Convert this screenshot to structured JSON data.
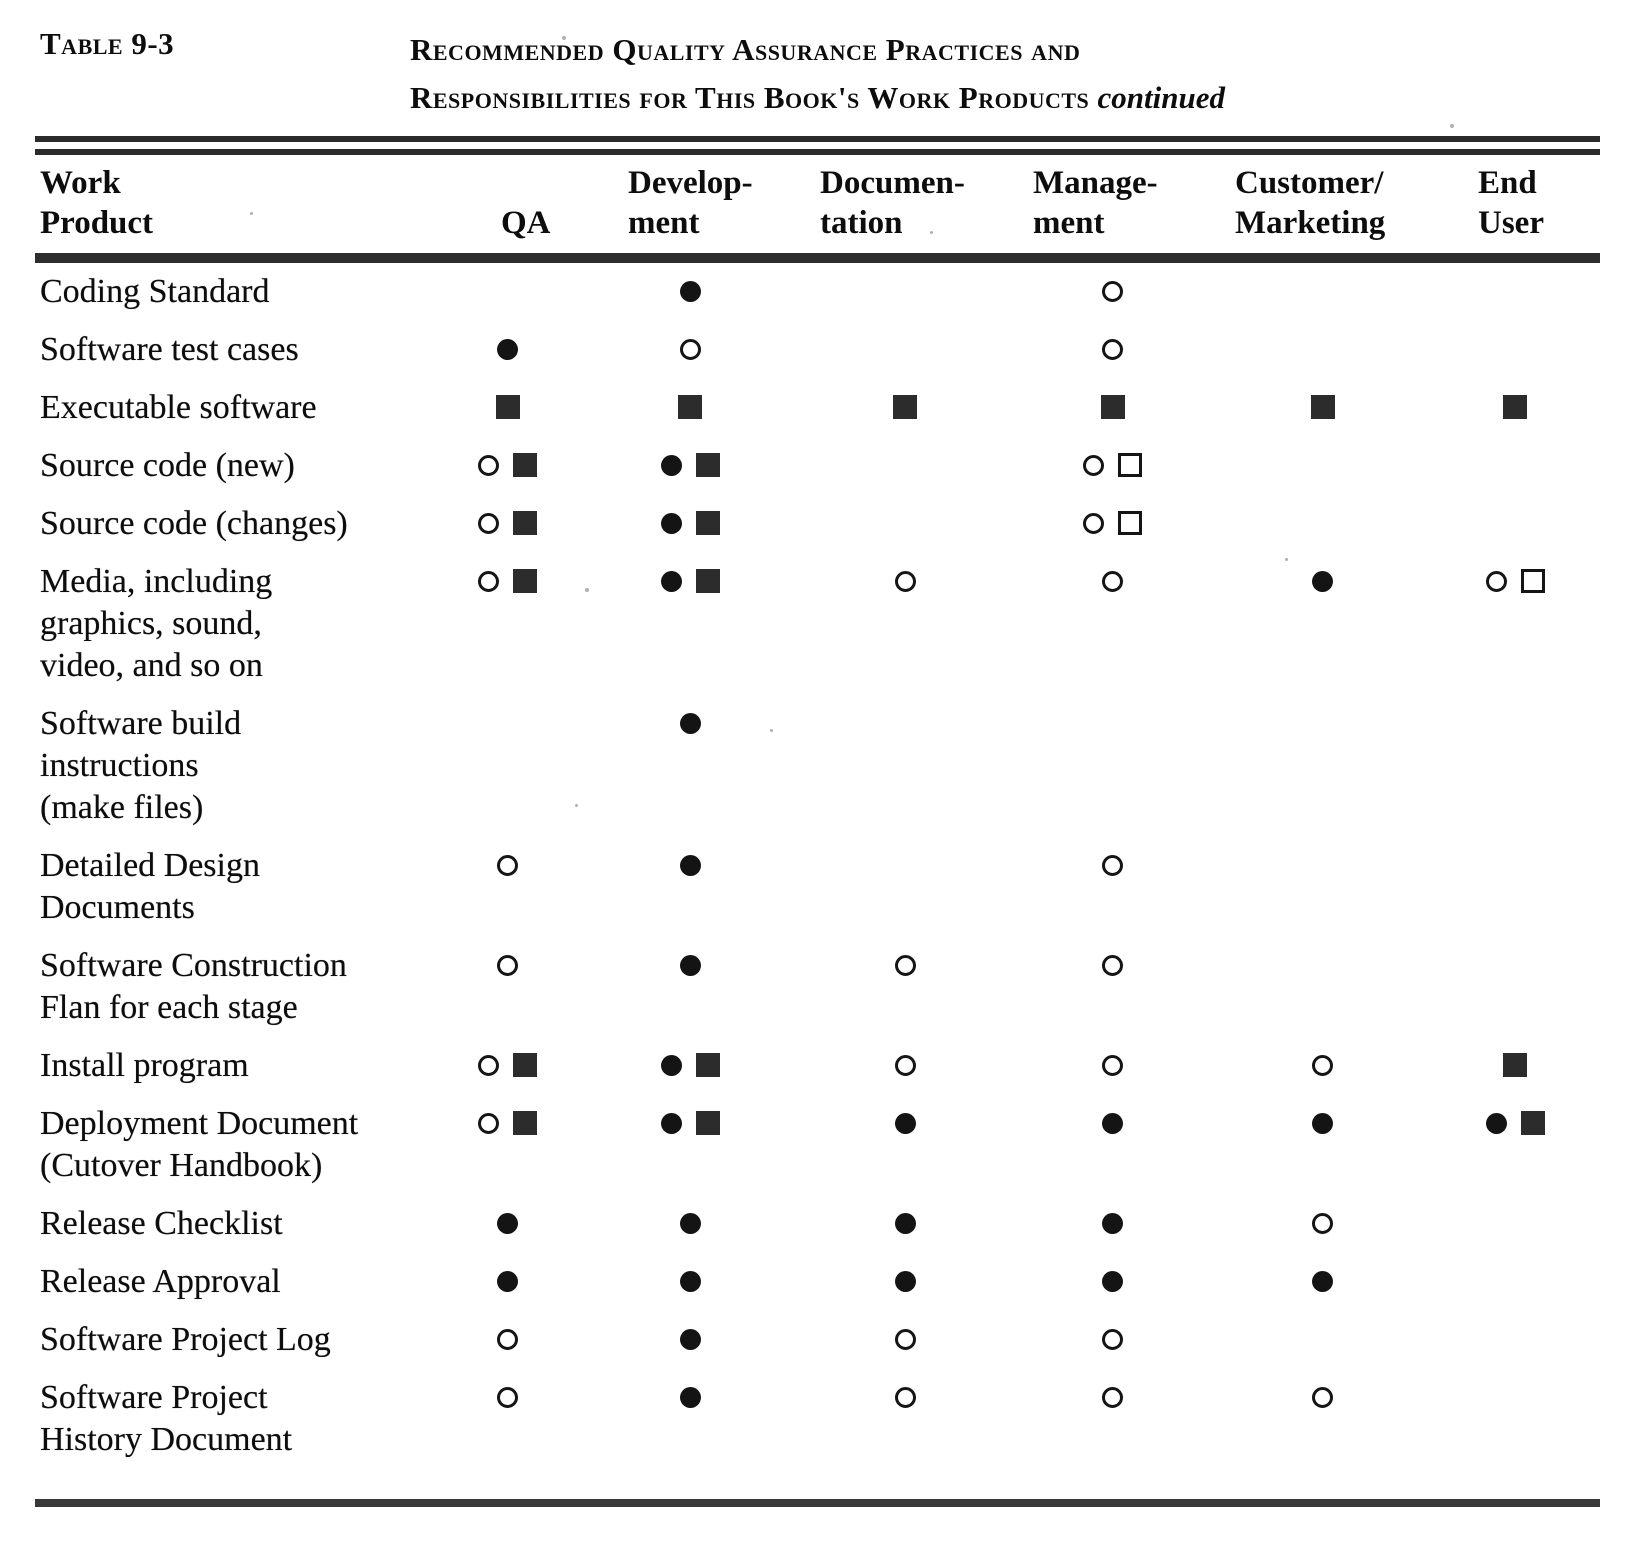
{
  "caption": {
    "label": "Table 9-3",
    "title_line1": "Recommended Quality Assurance Practices and",
    "title_line2": "Responsibilities for This Book's Work Products",
    "continued": "continued"
  },
  "table": {
    "columns": [
      {
        "id": "product",
        "lines": [
          "Work",
          "Product"
        ]
      },
      {
        "id": "qa",
        "lines": [
          "",
          "QA"
        ]
      },
      {
        "id": "development",
        "lines": [
          "Develop-",
          "ment"
        ]
      },
      {
        "id": "documentation",
        "lines": [
          "Documen-",
          "tation"
        ]
      },
      {
        "id": "management",
        "lines": [
          "Manage-",
          "ment"
        ]
      },
      {
        "id": "customer_marketing",
        "lines": [
          "Customer/",
          "Marketing"
        ]
      },
      {
        "id": "end_user",
        "lines": [
          "End",
          "User"
        ]
      }
    ],
    "symbols": {
      "filled-circle": "●",
      "open-circle": "○",
      "filled-square": "■",
      "open-square": "□"
    },
    "rows": [
      {
        "product_lines": [
          "Coding Standard"
        ],
        "qa": [],
        "development": [
          "filled-circle"
        ],
        "documentation": [],
        "management": [
          "open-circle"
        ],
        "customer_marketing": [],
        "end_user": []
      },
      {
        "product_lines": [
          "Software test cases"
        ],
        "qa": [
          "filled-circle"
        ],
        "development": [
          "open-circle"
        ],
        "documentation": [],
        "management": [
          "open-circle"
        ],
        "customer_marketing": [],
        "end_user": []
      },
      {
        "product_lines": [
          "Executable software"
        ],
        "qa": [
          "filled-square"
        ],
        "development": [
          "filled-square"
        ],
        "documentation": [
          "filled-square"
        ],
        "management": [
          "filled-square"
        ],
        "customer_marketing": [
          "filled-square"
        ],
        "end_user": [
          "filled-square"
        ]
      },
      {
        "product_lines": [
          "Source code (new)"
        ],
        "qa": [
          "open-circle",
          "filled-square"
        ],
        "development": [
          "filled-circle",
          "filled-square"
        ],
        "documentation": [],
        "management": [
          "open-circle",
          "open-square"
        ],
        "customer_marketing": [],
        "end_user": []
      },
      {
        "product_lines": [
          "Source code (changes)"
        ],
        "qa": [
          "open-circle",
          "filled-square"
        ],
        "development": [
          "filled-circle",
          "filled-square"
        ],
        "documentation": [],
        "management": [
          "open-circle",
          "open-square"
        ],
        "customer_marketing": [],
        "end_user": []
      },
      {
        "product_lines": [
          "Media, including",
          "graphics, sound,",
          "video, and so on"
        ],
        "qa": [
          "open-circle",
          "filled-square"
        ],
        "development": [
          "filled-circle",
          "filled-square"
        ],
        "documentation": [
          "open-circle"
        ],
        "management": [
          "open-circle"
        ],
        "customer_marketing": [
          "filled-circle"
        ],
        "end_user": [
          "open-circle",
          "open-square"
        ]
      },
      {
        "product_lines": [
          "Software build",
          "instructions",
          "(make files)"
        ],
        "qa": [],
        "development": [
          "filled-circle"
        ],
        "documentation": [],
        "management": [],
        "customer_marketing": [],
        "end_user": []
      },
      {
        "product_lines": [
          "Detailed Design",
          "Documents"
        ],
        "qa": [
          "open-circle"
        ],
        "development": [
          "filled-circle"
        ],
        "documentation": [],
        "management": [
          "open-circle"
        ],
        "customer_marketing": [],
        "end_user": []
      },
      {
        "product_lines": [
          "Software Construction",
          "Flan for each stage"
        ],
        "qa": [
          "open-circle"
        ],
        "development": [
          "filled-circle"
        ],
        "documentation": [
          "open-circle"
        ],
        "management": [
          "open-circle"
        ],
        "customer_marketing": [],
        "end_user": []
      },
      {
        "product_lines": [
          "Install program"
        ],
        "qa": [
          "open-circle",
          "filled-square"
        ],
        "development": [
          "filled-circle",
          "filled-square"
        ],
        "documentation": [
          "open-circle"
        ],
        "management": [
          "open-circle"
        ],
        "customer_marketing": [
          "open-circle"
        ],
        "end_user": [
          "filled-square"
        ]
      },
      {
        "product_lines": [
          "Deployment Document",
          "(Cutover Handbook)"
        ],
        "qa": [
          "open-circle",
          "filled-square"
        ],
        "development": [
          "filled-circle",
          "filled-square"
        ],
        "documentation": [
          "filled-circle"
        ],
        "management": [
          "filled-circle"
        ],
        "customer_marketing": [
          "filled-circle"
        ],
        "end_user": [
          "filled-circle",
          "filled-square"
        ]
      },
      {
        "product_lines": [
          "Release Checklist"
        ],
        "qa": [
          "filled-circle"
        ],
        "development": [
          "filled-circle"
        ],
        "documentation": [
          "filled-circle"
        ],
        "management": [
          "filled-circle"
        ],
        "customer_marketing": [
          "open-circle"
        ],
        "end_user": []
      },
      {
        "product_lines": [
          "Release Approval"
        ],
        "qa": [
          "filled-circle"
        ],
        "development": [
          "filled-circle"
        ],
        "documentation": [
          "filled-circle"
        ],
        "management": [
          "filled-circle"
        ],
        "customer_marketing": [
          "filled-circle"
        ],
        "end_user": []
      },
      {
        "product_lines": [
          "Software Project Log"
        ],
        "qa": [
          "open-circle"
        ],
        "development": [
          "filled-circle"
        ],
        "documentation": [
          "open-circle"
        ],
        "management": [
          "open-circle"
        ],
        "customer_marketing": [],
        "end_user": []
      },
      {
        "product_lines": [
          "Software Project",
          "History Document"
        ],
        "qa": [
          "open-circle"
        ],
        "development": [
          "filled-circle"
        ],
        "documentation": [
          "open-circle"
        ],
        "management": [
          "open-circle"
        ],
        "customer_marketing": [
          "open-circle"
        ],
        "end_user": []
      }
    ]
  }
}
